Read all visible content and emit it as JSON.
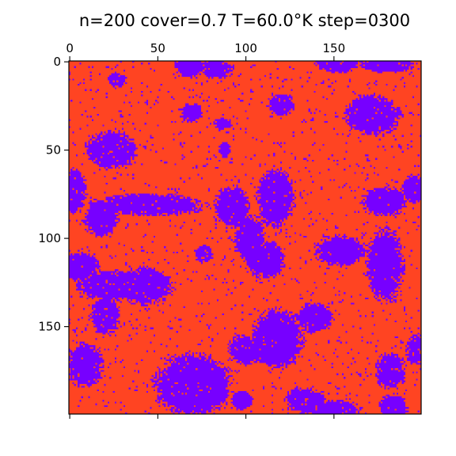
{
  "chart_data": {
    "type": "heatmap",
    "title": "n=200 cover=0.7 T=60.0°K step=0300",
    "xlabel": "",
    "ylabel": "",
    "grid_size": 200,
    "coverage": 0.7,
    "xlim": [
      0,
      200
    ],
    "ylim": [
      200,
      0
    ],
    "x_ticks": [
      0,
      50,
      100,
      150
    ],
    "y_ticks": [
      0,
      50,
      100,
      150
    ],
    "x_tick_labels": [
      "0",
      "50",
      "100",
      "150"
    ],
    "y_tick_labels": [
      "0",
      "50",
      "100",
      "150"
    ],
    "x_axis_position": "top",
    "grid": false,
    "legend": "none",
    "colors": {
      "occupied": "#ff4422",
      "empty": "#7700ff",
      "axes": "#000000"
    },
    "empty_regions": [
      {
        "cx": 3,
        "cy": 73,
        "rx": 6,
        "ry": 12
      },
      {
        "cx": 24,
        "cy": 50,
        "rx": 14,
        "ry": 10
      },
      {
        "cx": 18,
        "cy": 88,
        "rx": 9,
        "ry": 10
      },
      {
        "cx": 45,
        "cy": 81,
        "rx": 30,
        "ry": 6
      },
      {
        "cx": 6,
        "cy": 116,
        "rx": 10,
        "ry": 8
      },
      {
        "cx": 25,
        "cy": 127,
        "rx": 20,
        "ry": 8
      },
      {
        "cx": 42,
        "cy": 127,
        "rx": 15,
        "ry": 10
      },
      {
        "cx": 20,
        "cy": 144,
        "rx": 8,
        "ry": 10
      },
      {
        "cx": 27,
        "cy": 10,
        "rx": 5,
        "ry": 4
      },
      {
        "cx": 68,
        "cy": 3,
        "rx": 8,
        "ry": 6
      },
      {
        "cx": 84,
        "cy": 4,
        "rx": 9,
        "ry": 5
      },
      {
        "cx": 152,
        "cy": 1,
        "rx": 12,
        "ry": 5
      },
      {
        "cx": 180,
        "cy": 2,
        "rx": 14,
        "ry": 4
      },
      {
        "cx": 69,
        "cy": 29,
        "rx": 6,
        "ry": 5
      },
      {
        "cx": 87,
        "cy": 35,
        "rx": 5,
        "ry": 3
      },
      {
        "cx": 120,
        "cy": 24,
        "rx": 7,
        "ry": 6
      },
      {
        "cx": 172,
        "cy": 30,
        "rx": 15,
        "ry": 11
      },
      {
        "cx": 88,
        "cy": 50,
        "rx": 3,
        "ry": 4
      },
      {
        "cx": 117,
        "cy": 77,
        "rx": 10,
        "ry": 16
      },
      {
        "cx": 92,
        "cy": 82,
        "rx": 9,
        "ry": 11
      },
      {
        "cx": 102,
        "cy": 100,
        "rx": 8,
        "ry": 12
      },
      {
        "cx": 111,
        "cy": 112,
        "rx": 11,
        "ry": 10
      },
      {
        "cx": 76,
        "cy": 109,
        "rx": 5,
        "ry": 5
      },
      {
        "cx": 179,
        "cy": 79,
        "rx": 12,
        "ry": 8
      },
      {
        "cx": 196,
        "cy": 72,
        "rx": 7,
        "ry": 8
      },
      {
        "cx": 154,
        "cy": 107,
        "rx": 14,
        "ry": 8
      },
      {
        "cx": 179,
        "cy": 115,
        "rx": 10,
        "ry": 20
      },
      {
        "cx": 139,
        "cy": 145,
        "rx": 10,
        "ry": 8
      },
      {
        "cx": 118,
        "cy": 157,
        "rx": 14,
        "ry": 16
      },
      {
        "cx": 100,
        "cy": 163,
        "rx": 10,
        "ry": 8
      },
      {
        "cx": 70,
        "cy": 183,
        "rx": 21,
        "ry": 17
      },
      {
        "cx": 98,
        "cy": 192,
        "rx": 6,
        "ry": 5
      },
      {
        "cx": 9,
        "cy": 172,
        "rx": 10,
        "ry": 12
      },
      {
        "cx": 134,
        "cy": 192,
        "rx": 11,
        "ry": 7
      },
      {
        "cx": 150,
        "cy": 197,
        "rx": 14,
        "ry": 5
      },
      {
        "cx": 182,
        "cy": 175,
        "rx": 8,
        "ry": 10
      },
      {
        "cx": 197,
        "cy": 163,
        "rx": 6,
        "ry": 8
      },
      {
        "cx": 184,
        "cy": 195,
        "rx": 8,
        "ry": 6
      }
    ]
  }
}
